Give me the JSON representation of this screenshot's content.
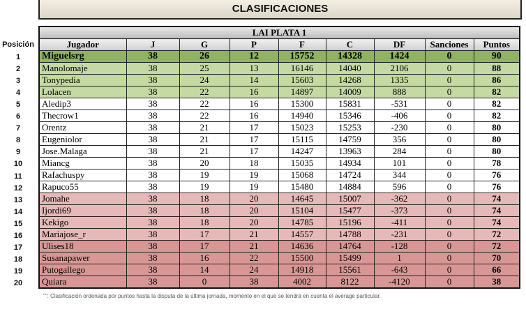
{
  "title": "CLASIFICACIONES",
  "league": "LAI PLATA 1",
  "position_header": "Posición",
  "columns": [
    "Jugador",
    "J",
    "G",
    "P",
    "F",
    "C",
    "DF",
    "Sanciones",
    "Puntos"
  ],
  "colors": {
    "first": "#8fb45d",
    "promotion": "#c5d9a2",
    "neutral": "#ffffff",
    "danger": "#e6b9b8",
    "relegation": "#d89795"
  },
  "rows": [
    {
      "pos": "1",
      "cells": [
        "Miguelsrg",
        "38",
        "26",
        "12",
        "15752",
        "14328",
        "1424",
        "0",
        "90"
      ],
      "zone": "first"
    },
    {
      "pos": "2",
      "cells": [
        "Manolomaje",
        "38",
        "25",
        "13",
        "16146",
        "14040",
        "2106",
        "0",
        "88"
      ],
      "zone": "green"
    },
    {
      "pos": "3",
      "cells": [
        "Tonypedia",
        "38",
        "24",
        "14",
        "15603",
        "14268",
        "1335",
        "0",
        "86"
      ],
      "zone": "green"
    },
    {
      "pos": "4",
      "cells": [
        "Lolacen",
        "38",
        "22",
        "16",
        "14897",
        "14009",
        "888",
        "0",
        "82"
      ],
      "zone": "green"
    },
    {
      "pos": "5",
      "cells": [
        "Aledip3",
        "38",
        "22",
        "16",
        "15300",
        "15831",
        "-531",
        "0",
        "82"
      ],
      "zone": "white"
    },
    {
      "pos": "6",
      "cells": [
        "Thecrow1",
        "38",
        "22",
        "16",
        "14940",
        "15346",
        "-406",
        "0",
        "82"
      ],
      "zone": "white"
    },
    {
      "pos": "7",
      "cells": [
        "Orentz",
        "38",
        "21",
        "17",
        "15023",
        "15253",
        "-230",
        "0",
        "80"
      ],
      "zone": "white"
    },
    {
      "pos": "8",
      "cells": [
        "Eugeniolor",
        "38",
        "21",
        "17",
        "15115",
        "14759",
        "356",
        "0",
        "80"
      ],
      "zone": "white"
    },
    {
      "pos": "9",
      "cells": [
        "Jose.Malaga",
        "38",
        "21",
        "17",
        "14247",
        "13963",
        "284",
        "0",
        "80"
      ],
      "zone": "white"
    },
    {
      "pos": "10",
      "cells": [
        "Miancg",
        "38",
        "20",
        "18",
        "15035",
        "14934",
        "101",
        "0",
        "78"
      ],
      "zone": "white"
    },
    {
      "pos": "11",
      "cells": [
        "Rafachuspy",
        "38",
        "19",
        "19",
        "15068",
        "14724",
        "344",
        "0",
        "76"
      ],
      "zone": "white"
    },
    {
      "pos": "12",
      "cells": [
        "Rapuco55",
        "38",
        "19",
        "19",
        "15480",
        "14884",
        "596",
        "0",
        "76"
      ],
      "zone": "white"
    },
    {
      "pos": "13",
      "cells": [
        "Jomahe",
        "38",
        "18",
        "20",
        "14645",
        "15007",
        "-362",
        "0",
        "74"
      ],
      "zone": "pink"
    },
    {
      "pos": "14",
      "cells": [
        "Ijordi69",
        "38",
        "18",
        "20",
        "15104",
        "15477",
        "-373",
        "0",
        "74"
      ],
      "zone": "pink"
    },
    {
      "pos": "15",
      "cells": [
        "Kekigo",
        "38",
        "18",
        "20",
        "14785",
        "15196",
        "-411",
        "0",
        "74"
      ],
      "zone": "pink"
    },
    {
      "pos": "16",
      "cells": [
        "Mariajose_r",
        "38",
        "17",
        "21",
        "14557",
        "14788",
        "-231",
        "0",
        "72"
      ],
      "zone": "pink"
    },
    {
      "pos": "17",
      "cells": [
        "Ulises18",
        "38",
        "17",
        "21",
        "14636",
        "14764",
        "-128",
        "0",
        "72"
      ],
      "zone": "red"
    },
    {
      "pos": "18",
      "cells": [
        "Susanapawer",
        "38",
        "16",
        "22",
        "15500",
        "15499",
        "1",
        "0",
        "70"
      ],
      "zone": "red"
    },
    {
      "pos": "19",
      "cells": [
        "Putogallego",
        "38",
        "14",
        "24",
        "14918",
        "15561",
        "-643",
        "0",
        "66"
      ],
      "zone": "red"
    },
    {
      "pos": "20",
      "cells": [
        "Quiara",
        "38",
        "0",
        "38",
        "4002",
        "8122",
        "-4120",
        "0",
        "38"
      ],
      "zone": "red"
    }
  ],
  "footnote": "\"\": Clasificación ordenada por puntos hasta la disputa de la última jornada, momento en el que se tendrá en cuenta el average particular."
}
